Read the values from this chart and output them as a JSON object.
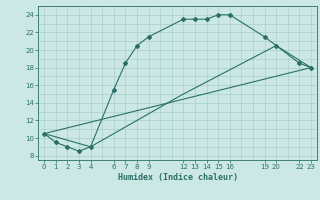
{
  "xlabel": "Humidex (Indice chaleur)",
  "bg_color": "#cce8e5",
  "grid_color_major": "#aacfcc",
  "grid_color_minor": "#cce8e5",
  "line_color": "#2a7068",
  "xlim": [
    -0.5,
    23.5
  ],
  "ylim": [
    7.5,
    25.0
  ],
  "xtick_positions": [
    0,
    1,
    2,
    3,
    4,
    6,
    7,
    8,
    9,
    12,
    13,
    14,
    15,
    16,
    19,
    20,
    22,
    23
  ],
  "xtick_labels": [
    "0",
    "1",
    "2",
    "3",
    "4",
    "6",
    "7",
    "8",
    "9",
    "12",
    "13",
    "14",
    "15",
    "16",
    "19",
    "20",
    "22",
    "23"
  ],
  "ytick_positions": [
    8,
    10,
    12,
    14,
    16,
    18,
    20,
    22,
    24
  ],
  "ytick_labels": [
    "8",
    "10",
    "12",
    "14",
    "16",
    "18",
    "20",
    "22",
    "24"
  ],
  "series1_x": [
    0,
    1,
    2,
    3,
    4,
    6,
    7,
    8,
    9,
    12,
    13,
    14,
    15,
    16,
    19,
    20,
    22,
    23
  ],
  "series1_y": [
    10.5,
    9.5,
    9.0,
    8.5,
    9.0,
    15.5,
    18.5,
    20.5,
    21.5,
    23.5,
    23.5,
    23.5,
    24.0,
    24.0,
    21.5,
    20.5,
    18.5,
    18.0
  ],
  "series2_x": [
    0,
    23
  ],
  "series2_y": [
    10.5,
    18.0
  ],
  "series3_x": [
    0,
    4,
    12,
    20,
    23
  ],
  "series3_y": [
    10.5,
    9.0,
    15.0,
    20.5,
    18.0
  ]
}
